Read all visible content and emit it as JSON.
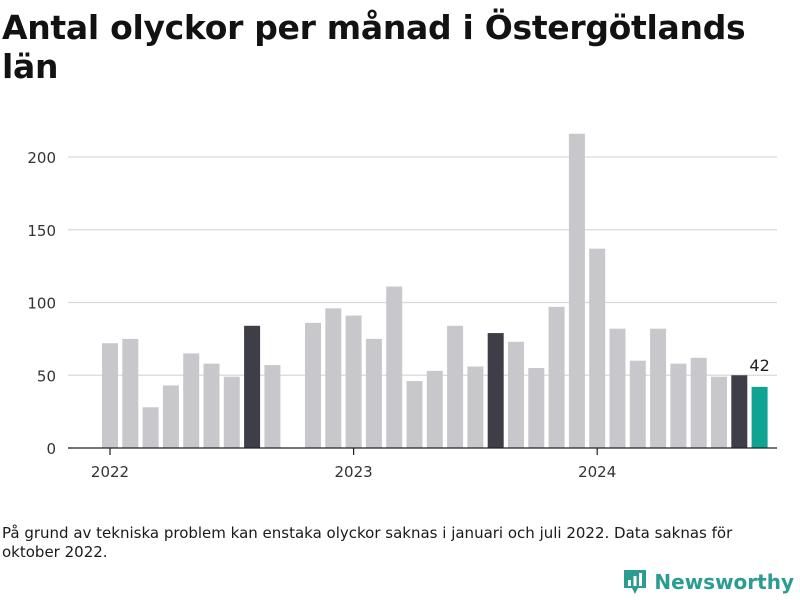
{
  "title": "Antal olyckor per månad i Östergötlands län",
  "note": "På grund av tekniska problem kan enstaka olyckor saknas i januari och juli 2022. Data saknas för oktober 2022.",
  "brand": {
    "name": "Newsworthy",
    "icon": "newsworthy-logo-icon",
    "color": "#2b9c91"
  },
  "colors": {
    "default": "#c8c8cc",
    "july": "#3e3e48",
    "latest": "#0fa393",
    "grid": "#d9d9d9",
    "axis": "#222222"
  },
  "chart_data": {
    "type": "bar",
    "title": "Antal olyckor per månad i Östergötlands län",
    "xlabel": "",
    "ylabel": "",
    "ylim": [
      0,
      225
    ],
    "yticks": [
      0,
      50,
      100,
      150,
      200
    ],
    "xtick_labels": [
      "2022",
      "2023",
      "2024"
    ],
    "grid": true,
    "categories": [
      "2022-01",
      "2022-02",
      "2022-03",
      "2022-04",
      "2022-05",
      "2022-06",
      "2022-07",
      "2022-08",
      "2022-09",
      "2022-10",
      "2022-11",
      "2022-12",
      "2023-01",
      "2023-02",
      "2023-03",
      "2023-04",
      "2023-05",
      "2023-06",
      "2023-07",
      "2023-08",
      "2023-09",
      "2023-10",
      "2023-11",
      "2023-12",
      "2024-01",
      "2024-02",
      "2024-03",
      "2024-04",
      "2024-05",
      "2024-06",
      "2024-07",
      "2024-08",
      "2024-09",
      "2024-10"
    ],
    "values": [
      72,
      75,
      28,
      43,
      65,
      58,
      49,
      84,
      57,
      null,
      86,
      96,
      91,
      75,
      111,
      46,
      53,
      84,
      56,
      79,
      73,
      55,
      97,
      216,
      137,
      82,
      60,
      82,
      58,
      62,
      49,
      50,
      42,
      0
    ],
    "highlight_label": {
      "category": "2024-09",
      "text": "42"
    }
  }
}
